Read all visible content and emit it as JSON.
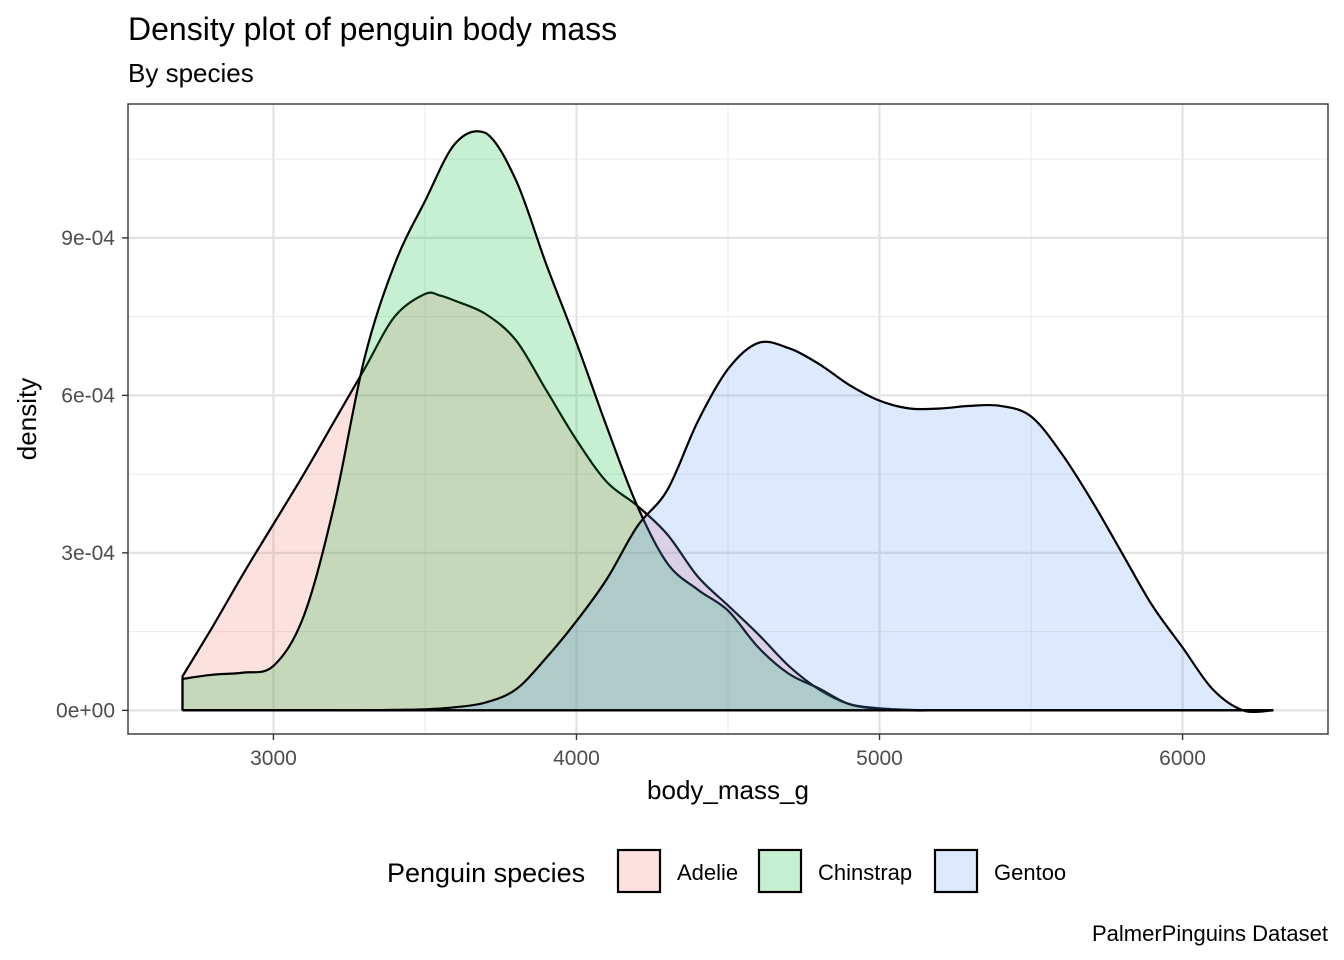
{
  "chart_data": {
    "type": "area",
    "title": "Density plot of penguin body mass",
    "subtitle": "By species",
    "xlabel": "body_mass_g",
    "ylabel": "density",
    "caption": "PalmerPinguins Dataset",
    "xlim": [
      2520,
      6480
    ],
    "ylim": [
      -4.5e-05,
      0.001155
    ],
    "x_ticks": [
      3000,
      4000,
      5000,
      6000
    ],
    "x_tick_labels": [
      "3000",
      "4000",
      "5000",
      "6000"
    ],
    "y_ticks": [
      0,
      0.0003,
      0.0006,
      0.0009
    ],
    "y_tick_labels": [
      "0e+00",
      "3e-04",
      "6e-04",
      "9e-04"
    ],
    "grid": true,
    "legend": {
      "title": "Penguin species",
      "position": "bottom"
    },
    "series": [
      {
        "name": "Adelie",
        "color": "#F8766D",
        "x": [
          2700,
          2800,
          2900,
          3000,
          3100,
          3200,
          3300,
          3400,
          3500,
          3550,
          3600,
          3700,
          3800,
          3900,
          4000,
          4100,
          4200,
          4300,
          4400,
          4500,
          4600,
          4700,
          4800,
          4900,
          5000,
          5100,
          5200,
          5300,
          5400,
          5500,
          5600,
          5700,
          5800,
          5900,
          6000,
          6100,
          6200,
          6300
        ],
        "y": [
          6.5e-05,
          0.00016,
          0.00026,
          0.000355,
          0.00045,
          0.00055,
          0.00065,
          0.00075,
          0.000793,
          0.00079,
          0.00078,
          0.000755,
          0.000705,
          0.00061,
          0.000515,
          0.000435,
          0.00039,
          0.000335,
          0.000255,
          0.0002,
          0.000145,
          8.5e-05,
          4e-05,
          1.2e-05,
          4e-06,
          1e-06,
          0,
          0,
          0,
          0,
          0,
          0,
          0,
          0,
          0,
          0,
          0,
          0
        ]
      },
      {
        "name": "Chinstrap",
        "color": "#00BA38",
        "x": [
          2700,
          2800,
          2900,
          3000,
          3100,
          3200,
          3300,
          3400,
          3500,
          3600,
          3700,
          3800,
          3900,
          4000,
          4100,
          4200,
          4300,
          4400,
          4500,
          4600,
          4700,
          4800,
          4900,
          5000,
          5100,
          5200,
          5300,
          5400,
          5500,
          5600,
          5700,
          5800,
          5900,
          6000,
          6100,
          6200,
          6300
        ],
        "y": [
          6e-05,
          6.8e-05,
          7.2e-05,
          8.5e-05,
          0.00018,
          0.00039,
          0.00067,
          0.00085,
          0.00097,
          0.00108,
          0.0011,
          0.00101,
          0.00085,
          0.0007,
          0.00054,
          0.00039,
          0.00028,
          0.00023,
          0.00019,
          0.00012,
          7e-05,
          4.2e-05,
          1.2e-05,
          3e-06,
          0,
          0,
          0,
          0,
          0,
          0,
          0,
          0,
          0,
          0,
          0,
          0,
          0
        ]
      },
      {
        "name": "Gentoo",
        "color": "#619CFF",
        "x": [
          2700,
          2800,
          2900,
          3000,
          3100,
          3200,
          3300,
          3400,
          3500,
          3600,
          3700,
          3800,
          3900,
          4000,
          4100,
          4200,
          4300,
          4400,
          4500,
          4600,
          4700,
          4800,
          4900,
          5000,
          5100,
          5200,
          5300,
          5400,
          5500,
          5600,
          5700,
          5800,
          5900,
          6000,
          6100,
          6200,
          6300
        ],
        "y": [
          0,
          0,
          0,
          0,
          0,
          0,
          0,
          1e-06,
          2e-06,
          6e-06,
          1.5e-05,
          4e-05,
          0.0001,
          0.00017,
          0.00025,
          0.00035,
          0.00042,
          0.00055,
          0.00065,
          0.0007,
          0.00069,
          0.00066,
          0.00062,
          0.00059,
          0.000575,
          0.000575,
          0.00058,
          0.00058,
          0.00056,
          0.00049,
          0.0004,
          0.0003,
          0.0002,
          0.00012,
          4e-05,
          0,
          0
        ]
      }
    ]
  }
}
